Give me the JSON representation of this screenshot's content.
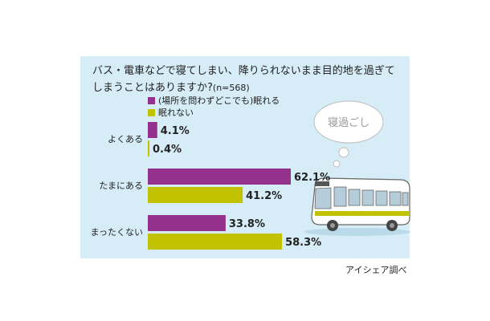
{
  "question_line1": "バス・電車などで寝てしまい、降りられないまま目的地を過ぎて",
  "question_line2": "しまうことはありますか?",
  "sample_note": "(n=568)",
  "bubble_text": "寝過ごし",
  "source": "アイシェア調べ",
  "colors": {
    "purple": "#93318c",
    "green": "#c2c200",
    "panel": "#d6ecf7"
  },
  "chart_data": {
    "type": "bar",
    "orientation": "horizontal",
    "unit": "%",
    "categories": [
      "よくある",
      "たまにある",
      "まったくない"
    ],
    "series": [
      {
        "name": "(場所を問わずどこでも)眠れる",
        "values": [
          4.1,
          62.1,
          33.8
        ]
      },
      {
        "name": "眠れない",
        "values": [
          0.4,
          41.2,
          58.3
        ]
      }
    ],
    "value_labels": [
      [
        "4.1%",
        "0.4%"
      ],
      [
        "62.1%",
        "41.2%"
      ],
      [
        "33.8%",
        "58.3%"
      ]
    ],
    "xlim": [
      0,
      65
    ],
    "grid": false,
    "legend_position": "top-left"
  }
}
